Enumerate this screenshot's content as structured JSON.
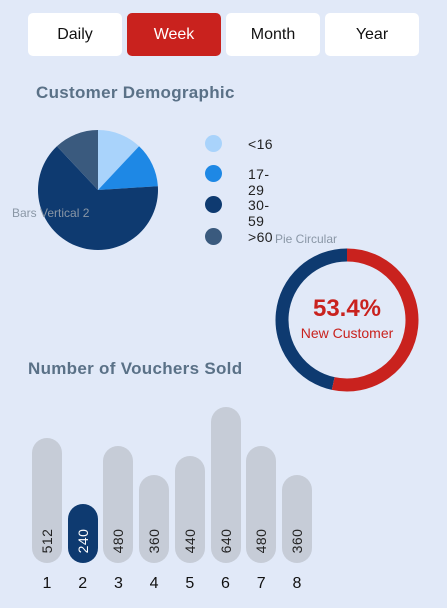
{
  "tabs": [
    {
      "label": "Daily",
      "active": false
    },
    {
      "label": "Week",
      "active": true
    },
    {
      "label": "Month",
      "active": false
    },
    {
      "label": "Year",
      "active": false
    }
  ],
  "demographic": {
    "title": "Customer Demographic",
    "ghost_label": "Bars Vertical 2",
    "legend": [
      {
        "label": "<16",
        "color": "#a9d3fb"
      },
      {
        "label": "17-29",
        "color": "#1e88e5"
      },
      {
        "label": "30-59",
        "color": "#0e3a70"
      },
      {
        "label": ">60",
        "color": "#3a5a7e"
      }
    ]
  },
  "ring": {
    "ghost_label": "Pie Circular",
    "percent_text": "53.4%",
    "subtitle": "New Customer",
    "value": 0.534,
    "primary_color": "#c9221e",
    "secondary_color": "#0e3a70"
  },
  "vouchers": {
    "title": "Number of Vouchers Sold"
  },
  "chart_data": [
    {
      "type": "pie",
      "labels": [
        "<16",
        "17-29",
        "30-59",
        ">60"
      ],
      "values": [
        12,
        12,
        64,
        12
      ]
    },
    {
      "type": "bar",
      "categories": [
        "1",
        "2",
        "3",
        "4",
        "5",
        "6",
        "7",
        "8"
      ],
      "values": [
        512,
        240,
        480,
        360,
        440,
        640,
        480,
        360
      ],
      "active_index": 1
    }
  ]
}
